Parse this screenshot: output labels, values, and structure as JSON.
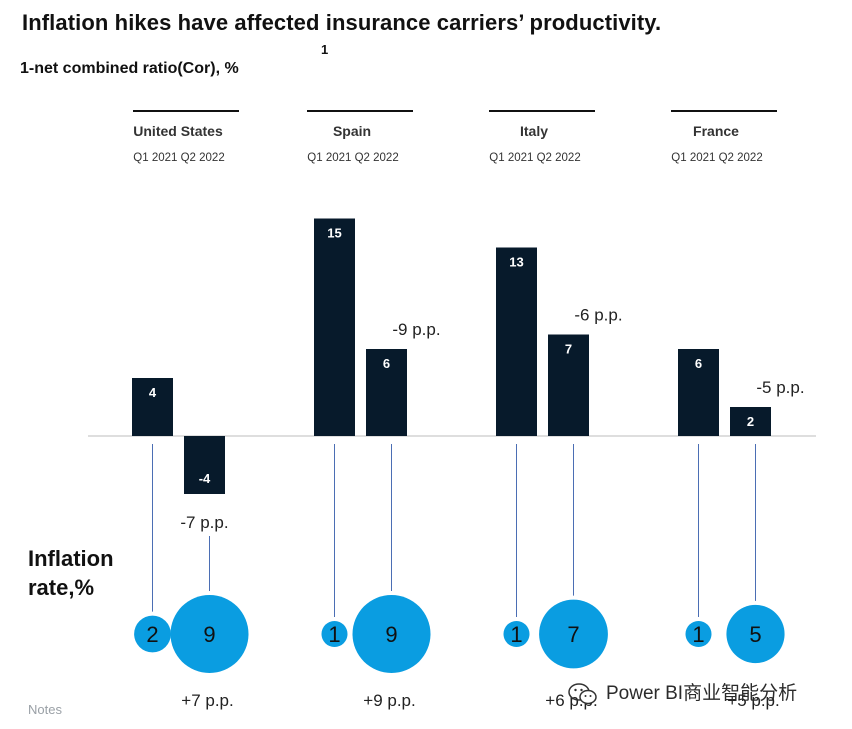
{
  "title": "Inflation hikes have affected insurance carriers’ productivity.",
  "subtitle": "1-net combined ratio(Cor), %",
  "footnote_mark": "1",
  "left_label_line1": "Inflation",
  "left_label_line2": "rate,%",
  "notes": "Notes",
  "watermark": "Power BI商业智能分析",
  "colors": {
    "bar": "#071a2b",
    "bubble": "#0a9de1",
    "connector": "#4b6eb4",
    "baseline": "#bdbdbd",
    "text": "#222222"
  },
  "chart_data": {
    "type": "bar",
    "title": "Inflation hikes have affected insurance carriers’ productivity.",
    "ylabel": "1-net combined ratio(Cor), %",
    "period_label": "Q1 2021 Q2 2022",
    "period_labels": [
      "Q1 2021",
      "Q2 2022"
    ],
    "countries": [
      {
        "name": "United States",
        "ratio": [
          4,
          -4
        ],
        "ratio_change": "-7 p.p.",
        "inflation": [
          2,
          9
        ],
        "inflation_change": "+7 p.p."
      },
      {
        "name": "Spain",
        "ratio": [
          15,
          6
        ],
        "ratio_change": "-9 p.p.",
        "inflation": [
          1,
          9
        ],
        "inflation_change": "+9 p.p."
      },
      {
        "name": "Italy",
        "ratio": [
          13,
          7
        ],
        "ratio_change": "-6 p.p.",
        "inflation": [
          1,
          7
        ],
        "inflation_change": "+6 p.p."
      },
      {
        "name": "France",
        "ratio": [
          6,
          2
        ],
        "ratio_change": "-5 p.p.",
        "inflation": [
          1,
          5
        ],
        "inflation_change": "+5 p.p."
      }
    ],
    "ylim": [
      -4,
      15
    ],
    "grid": false,
    "legend": "none"
  }
}
